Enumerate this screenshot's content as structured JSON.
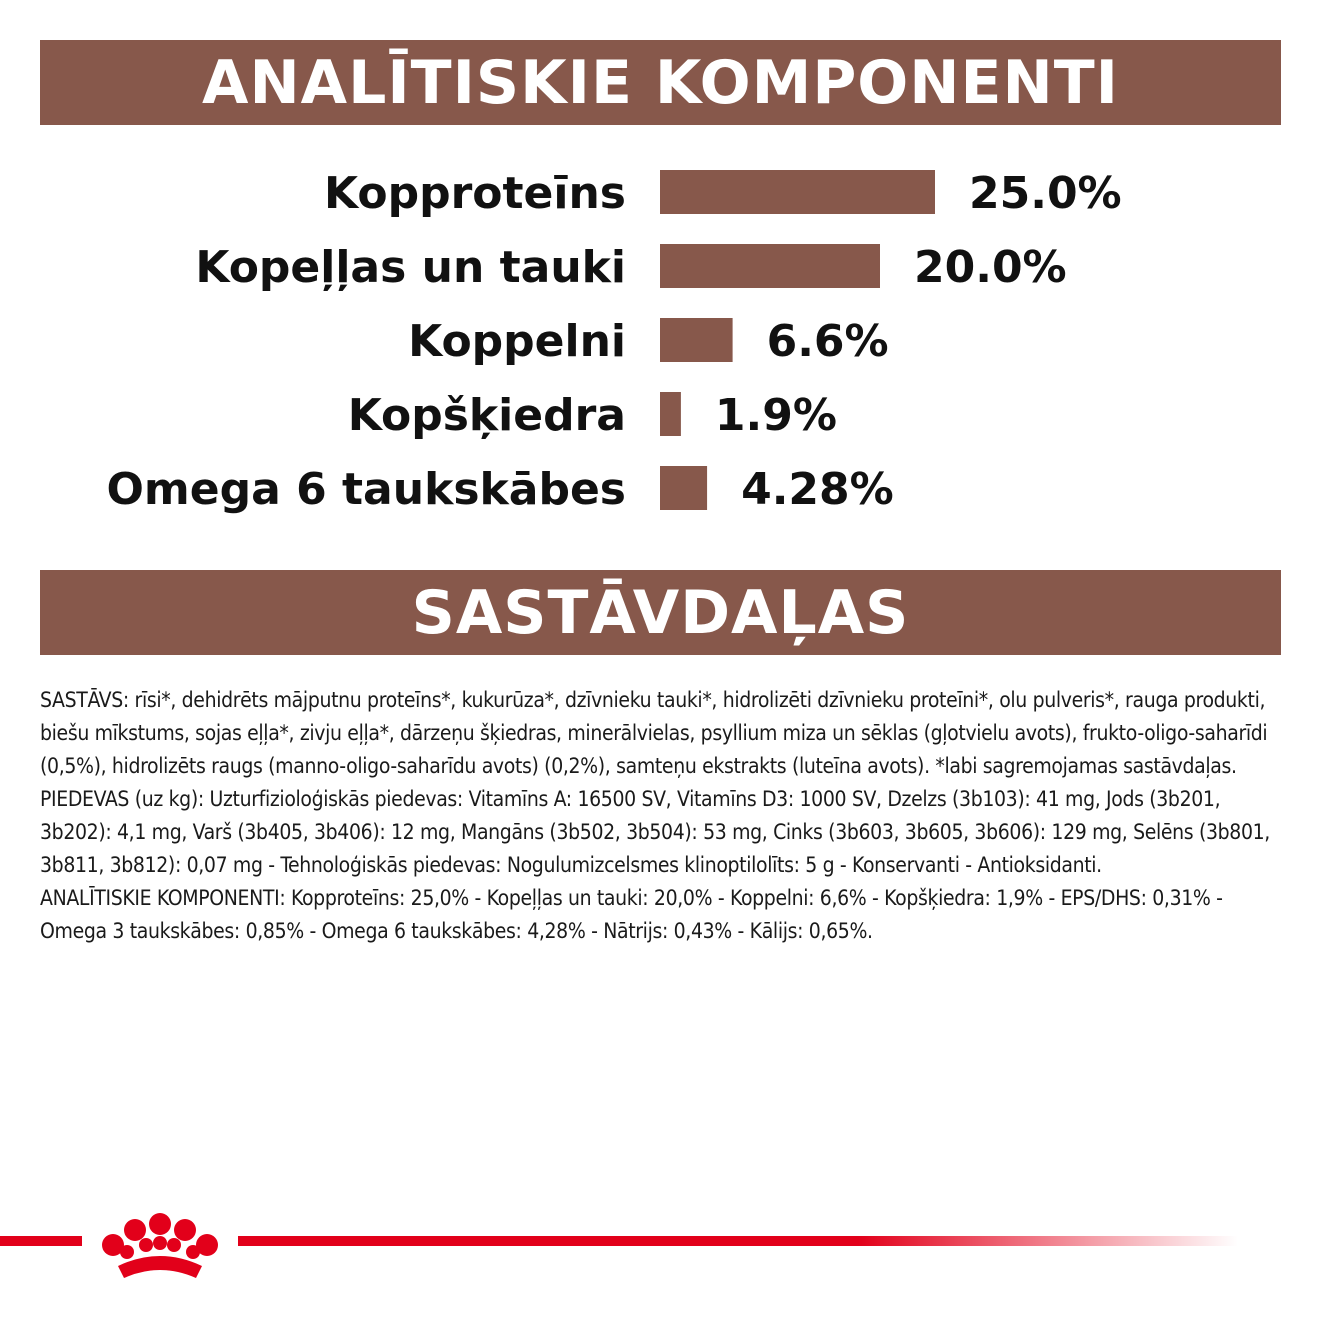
{
  "header": {
    "title": "ANALĪTISKIE KOMPONENTI"
  },
  "ingredients_header": {
    "title": "SASTĀVDAĻAS"
  },
  "colors": {
    "banner": "#87584b",
    "bar": "#87584b",
    "brand_red": "#e2001a"
  },
  "chart_data": {
    "type": "bar",
    "orientation": "horizontal",
    "categories": [
      "Kopproteīns",
      "Kopeļļas un tauki",
      "Koppelni",
      "Kopšķiedra",
      "Omega 6 taukskābes"
    ],
    "values": [
      25.0,
      20.0,
      6.6,
      1.9,
      4.28
    ],
    "labels": [
      "25.0%",
      "20.0%",
      "6.6%",
      "1.9%",
      "4.28%"
    ],
    "unit": "%",
    "grid": false
  },
  "ingredients": {
    "paragraphs": [
      "SASTĀVS: rīsi*, dehidrēts mājputnu proteīns*, kukurūza*, dzīvnieku tauki*, hidrolizēti dzīvnieku proteīni*, olu pulveris*, rauga produkti, biešu mīkstums, sojas eļļa*, zivju eļļa*, dārzeņu šķiedras, minerālvielas, psyllium miza un sēklas (gļotvielu avots), frukto-oligo-saharīdi (0,5%), hidrolizēts raugs (manno-oligo-saharīdu avots) (0,2%), samteņu ekstrakts (luteīna avots). *labi sagremojamas sastāvdaļas.",
      "PIEDEVAS (uz kg): Uzturfizioloģiskās piedevas: Vitamīns A: 16500 SV, Vitamīns D3: 1000 SV, Dzelzs (3b103): 41 mg, Jods (3b201, 3b202): 4,1 mg, Varš (3b405, 3b406): 12 mg, Mangāns (3b502, 3b504): 53 mg, Cinks (3b603, 3b605, 3b606): 129 mg, Selēns (3b801, 3b811, 3b812): 0,07 mg - Tehnoloģiskās piedevas: Nogulumizcelsmes klinoptilolīts: 5 g - Konservanti - Antioksidanti.",
      "ANALĪTISKIE KOMPONENTI: Kopproteīns: 25,0% - Kopeļļas un tauki: 20,0% - Koppelni: 6,6% - Kopšķiedra: 1,9% - EPS/DHS: 0,31% - Omega 3 taukskābes: 0,85% - Omega 6 taukskābes: 4,28% - Nātrijs: 0,43% - Kālijs: 0,65%."
    ]
  },
  "footer": {
    "logo_icon": "crown-icon"
  }
}
